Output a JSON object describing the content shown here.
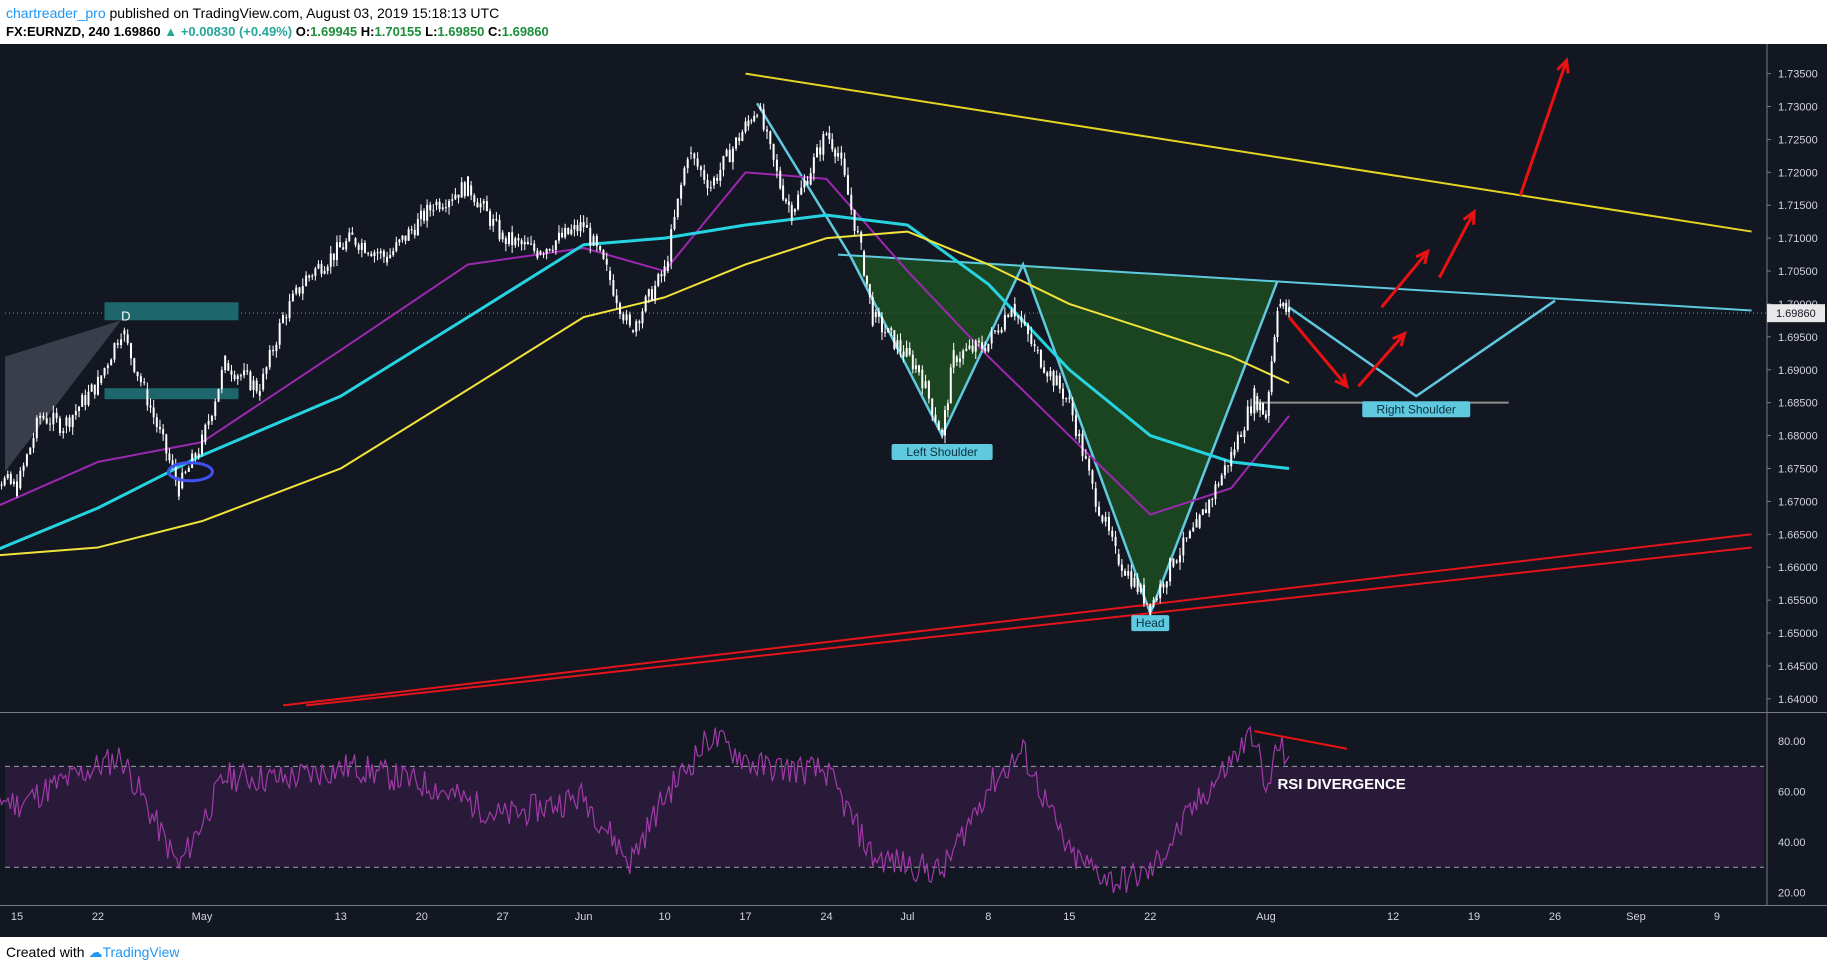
{
  "header": {
    "author": "chartreader_pro",
    "published_text": "published on TradingView.com, August 03, 2019 15:18:13 UTC",
    "symbol_interval": "FX:EURNZD, 240",
    "last_price": "1.69860",
    "change": "▲ +0.00830 (+0.49%)",
    "o_label": "O:",
    "o_value": "1.69945",
    "h_label": "H:",
    "h_value": "1.70155",
    "l_label": "L:",
    "l_value": "1.69850",
    "c_label": "C:",
    "c_value": "1.69860"
  },
  "footer": {
    "created_with": "Created with",
    "brand": "TradingView"
  },
  "colors": {
    "background": "#131722",
    "candle": "#ffffff",
    "ema_purple": "#9c27b0",
    "ema_cyan": "#26d3e0",
    "ema_yellow": "#f1e33a",
    "trend_yellow": "#e5d422",
    "trend_red": "#e3151b",
    "neckline": "#5fc9e0",
    "pattern_fill": "#1f5a1f",
    "arrows": "#e81212",
    "rsi_line": "#a03aa8",
    "rsi_band": "#2a1a3a"
  },
  "chart_data": {
    "type": "candlestick",
    "symbol": "FX:EURNZD",
    "interval": "240",
    "ylim": [
      1.638,
      1.7395
    ],
    "y_ticks": [
      "1.73500",
      "1.73000",
      "1.72500",
      "1.72000",
      "1.71500",
      "1.71000",
      "1.70500",
      "1.70000",
      "1.69500",
      "1.69000",
      "1.68500",
      "1.68000",
      "1.67500",
      "1.67000",
      "1.66500",
      "1.66000",
      "1.65500",
      "1.65000",
      "1.64500",
      "1.64000"
    ],
    "x_ticks": [
      "15",
      "22",
      "May",
      "13",
      "20",
      "27",
      "Jun",
      "10",
      "17",
      "24",
      "Jul",
      "8",
      "15",
      "22",
      "Aug",
      "12",
      "19",
      "26",
      "Sep",
      "9"
    ],
    "last_price_label": "1.69860",
    "price_path": [
      {
        "x": "Apr 11",
        "y": 1.676
      },
      {
        "x": "Apr 15",
        "y": 1.672
      },
      {
        "x": "Apr 17",
        "y": 1.683
      },
      {
        "x": "Apr 19",
        "y": 1.6815
      },
      {
        "x": "Apr 22",
        "y": 1.688
      },
      {
        "x": "Apr 24",
        "y": 1.696
      },
      {
        "x": "Apr 26",
        "y": 1.687
      },
      {
        "x": "Apr 29",
        "y": 1.672
      },
      {
        "x": "May 1",
        "y": 1.679
      },
      {
        "x": "May 3",
        "y": 1.691
      },
      {
        "x": "May 6",
        "y": 1.687
      },
      {
        "x": "May 8",
        "y": 1.698
      },
      {
        "x": "May 10",
        "y": 1.704
      },
      {
        "x": "May 14",
        "y": 1.71
      },
      {
        "x": "May 17",
        "y": 1.707
      },
      {
        "x": "May 21",
        "y": 1.715
      },
      {
        "x": "May 24",
        "y": 1.718
      },
      {
        "x": "May 27",
        "y": 1.71
      },
      {
        "x": "May 30",
        "y": 1.708
      },
      {
        "x": "Jun 3",
        "y": 1.712
      },
      {
        "x": "Jun 5",
        "y": 1.705
      },
      {
        "x": "Jun 7",
        "y": 1.696
      },
      {
        "x": "Jun 10",
        "y": 1.705
      },
      {
        "x": "Jun 12",
        "y": 1.723
      },
      {
        "x": "Jun 14",
        "y": 1.718
      },
      {
        "x": "Jun 17",
        "y": 1.727
      },
      {
        "x": "Jun 18",
        "y": 1.73
      },
      {
        "x": "Jun 20",
        "y": 1.718
      },
      {
        "x": "Jun 21",
        "y": 1.714
      },
      {
        "x": "Jun 24",
        "y": 1.726
      },
      {
        "x": "Jun 25",
        "y": 1.723
      },
      {
        "x": "Jun 27",
        "y": 1.708
      },
      {
        "x": "Jun 28",
        "y": 1.698
      },
      {
        "x": "Jul 2",
        "y": 1.69
      },
      {
        "x": "Jul 4",
        "y": 1.68
      },
      {
        "x": "Jul 5",
        "y": 1.692
      },
      {
        "x": "Jul 8",
        "y": 1.694
      },
      {
        "x": "Jul 10",
        "y": 1.7
      },
      {
        "x": "Jul 12",
        "y": 1.693
      },
      {
        "x": "Jul 15",
        "y": 1.685
      },
      {
        "x": "Jul 17",
        "y": 1.672
      },
      {
        "x": "Jul 19",
        "y": 1.662
      },
      {
        "x": "Jul 22",
        "y": 1.654
      },
      {
        "x": "Jul 24",
        "y": 1.661
      },
      {
        "x": "Jul 26",
        "y": 1.666
      },
      {
        "x": "Jul 29",
        "y": 1.677
      },
      {
        "x": "Jul 31",
        "y": 1.686
      },
      {
        "x": "Aug 1",
        "y": 1.683
      },
      {
        "x": "Aug 2",
        "y": 1.7
      },
      {
        "x": "Aug 3",
        "y": 1.6986
      }
    ],
    "moving_averages": [
      {
        "color": "purple",
        "points": [
          {
            "x": "Apr 11",
            "y": 1.6675
          },
          {
            "x": "Apr 22",
            "y": 1.676
          },
          {
            "x": "May 1",
            "y": 1.679
          },
          {
            "x": "May 13",
            "y": 1.693
          },
          {
            "x": "May 24",
            "y": 1.706
          },
          {
            "x": "Jun 3",
            "y": 1.7085
          },
          {
            "x": "Jun 10",
            "y": 1.705
          },
          {
            "x": "Jun 17",
            "y": 1.72
          },
          {
            "x": "Jun 24",
            "y": 1.719
          },
          {
            "x": "Jul 1",
            "y": 1.705
          },
          {
            "x": "Jul 8",
            "y": 1.692
          },
          {
            "x": "Jul 15",
            "y": 1.68
          },
          {
            "x": "Jul 22",
            "y": 1.668
          },
          {
            "x": "Jul 29",
            "y": 1.672
          },
          {
            "x": "Aug 3",
            "y": 1.683
          }
        ]
      },
      {
        "color": "cyan",
        "points": [
          {
            "x": "Apr 11",
            "y": 1.661
          },
          {
            "x": "Apr 22",
            "y": 1.669
          },
          {
            "x": "May 1",
            "y": 1.677
          },
          {
            "x": "May 13",
            "y": 1.686
          },
          {
            "x": "May 24",
            "y": 1.698
          },
          {
            "x": "Jun 3",
            "y": 1.709
          },
          {
            "x": "Jun 10",
            "y": 1.71
          },
          {
            "x": "Jun 17",
            "y": 1.712
          },
          {
            "x": "Jun 24",
            "y": 1.7135
          },
          {
            "x": "Jul 1",
            "y": 1.712
          },
          {
            "x": "Jul 8",
            "y": 1.703
          },
          {
            "x": "Jul 15",
            "y": 1.69
          },
          {
            "x": "Jul 22",
            "y": 1.68
          },
          {
            "x": "Jul 29",
            "y": 1.676
          },
          {
            "x": "Aug 3",
            "y": 1.675
          }
        ]
      },
      {
        "color": "yellow",
        "points": [
          {
            "x": "Apr 11",
            "y": 1.6615
          },
          {
            "x": "Apr 22",
            "y": 1.663
          },
          {
            "x": "May 1",
            "y": 1.667
          },
          {
            "x": "May 13",
            "y": 1.675
          },
          {
            "x": "May 24",
            "y": 1.687
          },
          {
            "x": "Jun 3",
            "y": 1.698
          },
          {
            "x": "Jun 10",
            "y": 1.701
          },
          {
            "x": "Jun 17",
            "y": 1.706
          },
          {
            "x": "Jun 24",
            "y": 1.71
          },
          {
            "x": "Jul 1",
            "y": 1.711
          },
          {
            "x": "Jul 8",
            "y": 1.706
          },
          {
            "x": "Jul 15",
            "y": 1.7
          },
          {
            "x": "Jul 22",
            "y": 1.696
          },
          {
            "x": "Jul 29",
            "y": 1.692
          },
          {
            "x": "Aug 3",
            "y": 1.688
          }
        ]
      }
    ],
    "trendlines": [
      {
        "color": "yellow",
        "from": {
          "x": "Jun 17",
          "y": 1.735
        },
        "to": {
          "x": "Sep 12",
          "y": 1.711
        }
      },
      {
        "color": "cyan",
        "from": {
          "x": "Jun 25",
          "y": 1.7075
        },
        "to": {
          "x": "Sep 12",
          "y": 1.699
        }
      },
      {
        "color": "red",
        "from": {
          "x": "May 8",
          "y": 1.639
        },
        "to": {
          "x": "Sep 12",
          "y": 1.665
        }
      },
      {
        "color": "red",
        "from": {
          "x": "May 10",
          "y": 1.639
        },
        "to": {
          "x": "Sep 12",
          "y": 1.663
        }
      }
    ],
    "annotations": [
      {
        "text": "D",
        "x": "Apr 24",
        "y": 1.6995
      },
      {
        "text": "Left Shoulder",
        "x": "Jul 4",
        "y": 1.6775
      },
      {
        "text": "Head",
        "x": "Jul 22",
        "y": 1.6515
      },
      {
        "text": "Right Shoulder",
        "x": "Aug 14",
        "y": 1.684
      }
    ],
    "rsi": {
      "ylim": [
        15,
        90
      ],
      "y_ticks": [
        "80.00",
        "60.00",
        "40.00",
        "20.00"
      ],
      "overbought": 70,
      "oversold": 30,
      "annotation": "RSI DIVERGENCE",
      "values": [
        {
          "x": "Apr 11",
          "y": 62
        },
        {
          "x": "Apr 15",
          "y": 55
        },
        {
          "x": "Apr 19",
          "y": 64
        },
        {
          "x": "Apr 24",
          "y": 74
        },
        {
          "x": "Apr 29",
          "y": 30
        },
        {
          "x": "May 3",
          "y": 66
        },
        {
          "x": "May 8",
          "y": 65
        },
        {
          "x": "May 14",
          "y": 70
        },
        {
          "x": "May 21",
          "y": 62
        },
        {
          "x": "May 27",
          "y": 50
        },
        {
          "x": "Jun 3",
          "y": 58
        },
        {
          "x": "Jun 7",
          "y": 32
        },
        {
          "x": "Jun 10",
          "y": 58
        },
        {
          "x": "Jun 14",
          "y": 82
        },
        {
          "x": "Jun 18",
          "y": 70
        },
        {
          "x": "Jun 24",
          "y": 68
        },
        {
          "x": "Jun 28",
          "y": 34
        },
        {
          "x": "Jul 4",
          "y": 28
        },
        {
          "x": "Jul 8",
          "y": 62
        },
        {
          "x": "Jul 11",
          "y": 76
        },
        {
          "x": "Jul 15",
          "y": 35
        },
        {
          "x": "Jul 19",
          "y": 24
        },
        {
          "x": "Jul 22",
          "y": 28
        },
        {
          "x": "Jul 26",
          "y": 55
        },
        {
          "x": "Jul 29",
          "y": 72
        },
        {
          "x": "Jul 31",
          "y": 84
        },
        {
          "x": "Aug 1",
          "y": 58
        },
        {
          "x": "Aug 2",
          "y": 78
        },
        {
          "x": "Aug 3",
          "y": 74
        }
      ]
    }
  }
}
